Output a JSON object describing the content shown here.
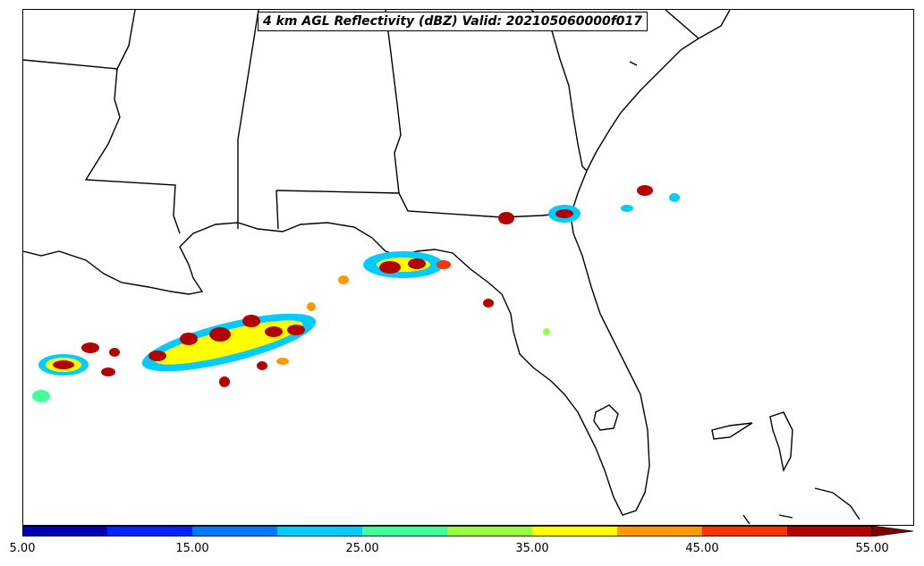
{
  "title": "4 km AGL Reflectivity (dBZ) Valid: 202105060000f017",
  "colorbar": {
    "extend": "max",
    "colors": [
      "#0000b3",
      "#0022ff",
      "#0077ff",
      "#00ccff",
      "#44ff99",
      "#99ff44",
      "#ffff00",
      "#ff9900",
      "#ff3300",
      "#b30000"
    ],
    "extend_color": "#800000",
    "tick_labels": [
      "5.00",
      "15.00",
      "25.00",
      "35.00",
      "45.00",
      "55.00"
    ]
  },
  "map": {
    "land_color": "#ffffff",
    "line_color": "#000000"
  }
}
